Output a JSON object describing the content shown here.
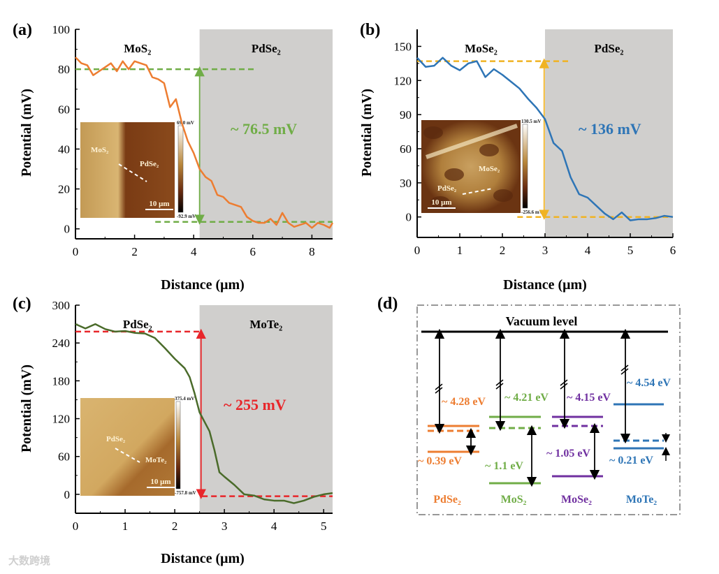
{
  "colors": {
    "orange": "#ed7d31",
    "green": "#70ad47",
    "blue": "#2e75b6",
    "red": "#e8262a",
    "purple": "#7030a0",
    "darkgreen": "#4a6b2a",
    "shade": "#d0cfcd"
  },
  "watermark": "大数跨境",
  "chart_data": [
    {
      "type": "line",
      "panel_label": "(a)",
      "xlabel": "Distance (μm)",
      "ylabel": "Potential (mV)",
      "xlim": [
        0,
        8.7
      ],
      "ylim": [
        -5,
        100
      ],
      "xticks": [
        0,
        2,
        4,
        6,
        8
      ],
      "yticks": [
        0,
        20,
        40,
        60,
        80,
        100
      ],
      "regions": [
        {
          "label": "MoS₂",
          "shaded": false,
          "range": [
            0,
            4.2
          ]
        },
        {
          "label": "PdSe₂",
          "shaded": true,
          "range": [
            4.2,
            8.7
          ]
        }
      ],
      "annotation": "~ 76.5 mV",
      "annotation_color": "#70ad47",
      "reference_lines": [
        {
          "y": 80,
          "x": [
            0,
            6.1
          ]
        },
        {
          "y": 3.5,
          "x": [
            2.7,
            8.7
          ]
        }
      ],
      "reference_arrow_x": 4.2,
      "reference_color": "#70ad47",
      "series": [
        {
          "name": "profile",
          "color": "#ed7d31",
          "x": [
            0,
            0.2,
            0.4,
            0.6,
            0.8,
            1.0,
            1.2,
            1.4,
            1.6,
            1.8,
            2.0,
            2.2,
            2.4,
            2.6,
            2.8,
            3.0,
            3.2,
            3.4,
            3.6,
            3.8,
            4.0,
            4.2,
            4.4,
            4.6,
            4.8,
            5.0,
            5.2,
            5.4,
            5.6,
            5.8,
            6.0,
            6.2,
            6.4,
            6.6,
            6.8,
            7.0,
            7.2,
            7.4,
            7.6,
            7.8,
            8.0,
            8.2,
            8.4,
            8.6,
            8.7
          ],
          "y": [
            86,
            83,
            82,
            77,
            79,
            81,
            83,
            79,
            84,
            80,
            84,
            83,
            82,
            76,
            75,
            73,
            61,
            65,
            53,
            44,
            38,
            30,
            26,
            24,
            17,
            16,
            13,
            12,
            11,
            6,
            4,
            3,
            3,
            5,
            2,
            8,
            3,
            1,
            2,
            3,
            0.5,
            3,
            2,
            0.5,
            3
          ]
        }
      ],
      "inset": {
        "labels": [
          "MoS₂",
          "PdSe₂"
        ],
        "scale_bar": "10 μm",
        "cbar_max": "69.0 mV",
        "cbar_min": "-92.9 mV"
      }
    },
    {
      "type": "line",
      "panel_label": "(b)",
      "xlabel": "Distance (μm)",
      "ylabel": "Potential (mV)",
      "xlim": [
        0,
        6
      ],
      "ylim": [
        -18,
        165
      ],
      "xticks": [
        0,
        1,
        2,
        3,
        4,
        5,
        6
      ],
      "yticks": [
        0,
        30,
        60,
        90,
        120,
        150
      ],
      "regions": [
        {
          "label": "MoSe₂",
          "shaded": false,
          "range": [
            0,
            3
          ]
        },
        {
          "label": "PdSe₂",
          "shaded": true,
          "range": [
            3,
            6
          ]
        }
      ],
      "annotation": "~ 136 mV",
      "annotation_color": "#2e75b6",
      "reference_lines": [
        {
          "y": 137,
          "x": [
            0,
            3.6
          ]
        },
        {
          "y": 0,
          "x": [
            2.35,
            6
          ]
        }
      ],
      "reference_arrow_x": 2.98,
      "reference_color": "#f0b323",
      "series": [
        {
          "name": "profile",
          "color": "#2e75b6",
          "x": [
            0,
            0.2,
            0.4,
            0.6,
            0.8,
            1.0,
            1.2,
            1.4,
            1.6,
            1.8,
            2.0,
            2.2,
            2.4,
            2.6,
            2.8,
            3.0,
            3.2,
            3.4,
            3.6,
            3.8,
            4.0,
            4.2,
            4.4,
            4.6,
            4.8,
            5.0,
            5.2,
            5.4,
            5.6,
            5.8,
            6.0
          ],
          "y": [
            140,
            132,
            133,
            140,
            133,
            129,
            135,
            137,
            123,
            130,
            125,
            119,
            113,
            104,
            96,
            86,
            65,
            58,
            35,
            20,
            17,
            10,
            3,
            -2,
            4,
            -3,
            -2,
            -2,
            -1,
            1,
            0
          ]
        }
      ],
      "inset": {
        "labels": [
          "MoSe₂",
          "PdSe₂"
        ],
        "scale_bar": "10 μm",
        "cbar_max": "130.5 mV",
        "cbar_min": "-256.6 mV"
      }
    },
    {
      "type": "line",
      "panel_label": "(c)",
      "xlabel": "Distance (μm)",
      "ylabel": "Potential (mV)",
      "xlim": [
        0,
        5.18
      ],
      "ylim": [
        -30,
        300
      ],
      "xticks": [
        0,
        1,
        2,
        3,
        4,
        5
      ],
      "yticks": [
        0,
        60,
        120,
        180,
        240,
        300
      ],
      "regions": [
        {
          "label": "PdSe₂",
          "shaded": false,
          "range": [
            0,
            2.5
          ]
        },
        {
          "label": "MoTe₂",
          "shaded": true,
          "range": [
            2.5,
            5.18
          ]
        }
      ],
      "annotation": "~ 255 mV",
      "annotation_color": "#e8262a",
      "reference_lines": [
        {
          "y": 258,
          "x": [
            0,
            2.55
          ]
        },
        {
          "y": -3,
          "x": [
            2.55,
            5.18
          ]
        }
      ],
      "reference_arrow_x": 2.53,
      "reference_color": "#e8262a",
      "series": [
        {
          "name": "profile",
          "color": "#4a6b2a",
          "x": [
            0,
            0.2,
            0.4,
            0.6,
            0.8,
            1.0,
            1.2,
            1.4,
            1.6,
            1.8,
            2.0,
            2.2,
            2.3,
            2.4,
            2.5,
            2.6,
            2.7,
            2.8,
            2.9,
            3.0,
            3.2,
            3.4,
            3.6,
            3.8,
            4.0,
            4.2,
            4.4,
            4.6,
            4.8,
            5.0,
            5.18
          ],
          "y": [
            270,
            263,
            270,
            262,
            258,
            259,
            256,
            255,
            248,
            232,
            215,
            200,
            186,
            160,
            130,
            115,
            100,
            70,
            35,
            28,
            15,
            0,
            -2,
            -8,
            -10,
            -10,
            -14,
            -10,
            -4,
            0,
            2
          ]
        }
      ],
      "inset": {
        "labels": [
          "PdSe₂",
          "MoTe₂"
        ],
        "scale_bar": "10 μm",
        "cbar_max": "375.4 mV",
        "cbar_min": "-757.8 mV"
      }
    }
  ],
  "diagram": {
    "panel_label": "(d)",
    "vacuum_label": "Vacuum level",
    "materials": [
      {
        "name": "PdSe₂",
        "color": "#ed7d31",
        "work_function": "~ 4.28 eV",
        "gap_label": "~ 0.39 eV"
      },
      {
        "name": "MoS₂",
        "color": "#70ad47",
        "work_function": "~ 4.21 eV",
        "gap_label": "~ 1.1 eV"
      },
      {
        "name": "MoSe₂",
        "color": "#7030a0",
        "work_function": "~ 4.15 eV",
        "gap_label": "~ 1.05 eV"
      },
      {
        "name": "MoTe₂",
        "color": "#2e75b6",
        "work_function": "~ 4.54 eV",
        "gap_label": "~ 0.21 eV"
      }
    ]
  }
}
